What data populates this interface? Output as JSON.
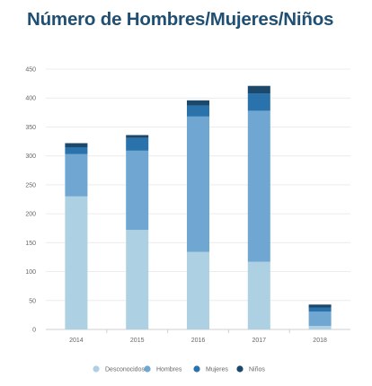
{
  "chart_data": {
    "type": "bar",
    "stacked": true,
    "title": "Número de Hombres/Mujeres/Niños",
    "categories": [
      "2014",
      "2015",
      "2016",
      "2017",
      "2018"
    ],
    "series": [
      {
        "name": "Desconocidos",
        "color": "#aed0e3",
        "values": [
          230,
          172,
          134,
          117,
          6
        ]
      },
      {
        "name": "Hombres",
        "color": "#6fa6d2",
        "values": [
          73,
          137,
          234,
          261,
          25
        ]
      },
      {
        "name": "Mujeres",
        "color": "#2a72ac",
        "values": [
          12,
          22,
          19,
          30,
          7
        ]
      },
      {
        "name": "Niños",
        "color": "#1b486b",
        "values": [
          7,
          5,
          9,
          13,
          5
        ]
      }
    ],
    "ylim": [
      0,
      450
    ],
    "yticks": [
      "0",
      "50",
      "100",
      "150",
      "200",
      "250",
      "300",
      "350",
      "400",
      "450"
    ],
    "grid": true,
    "legend_position": "bottom"
  }
}
